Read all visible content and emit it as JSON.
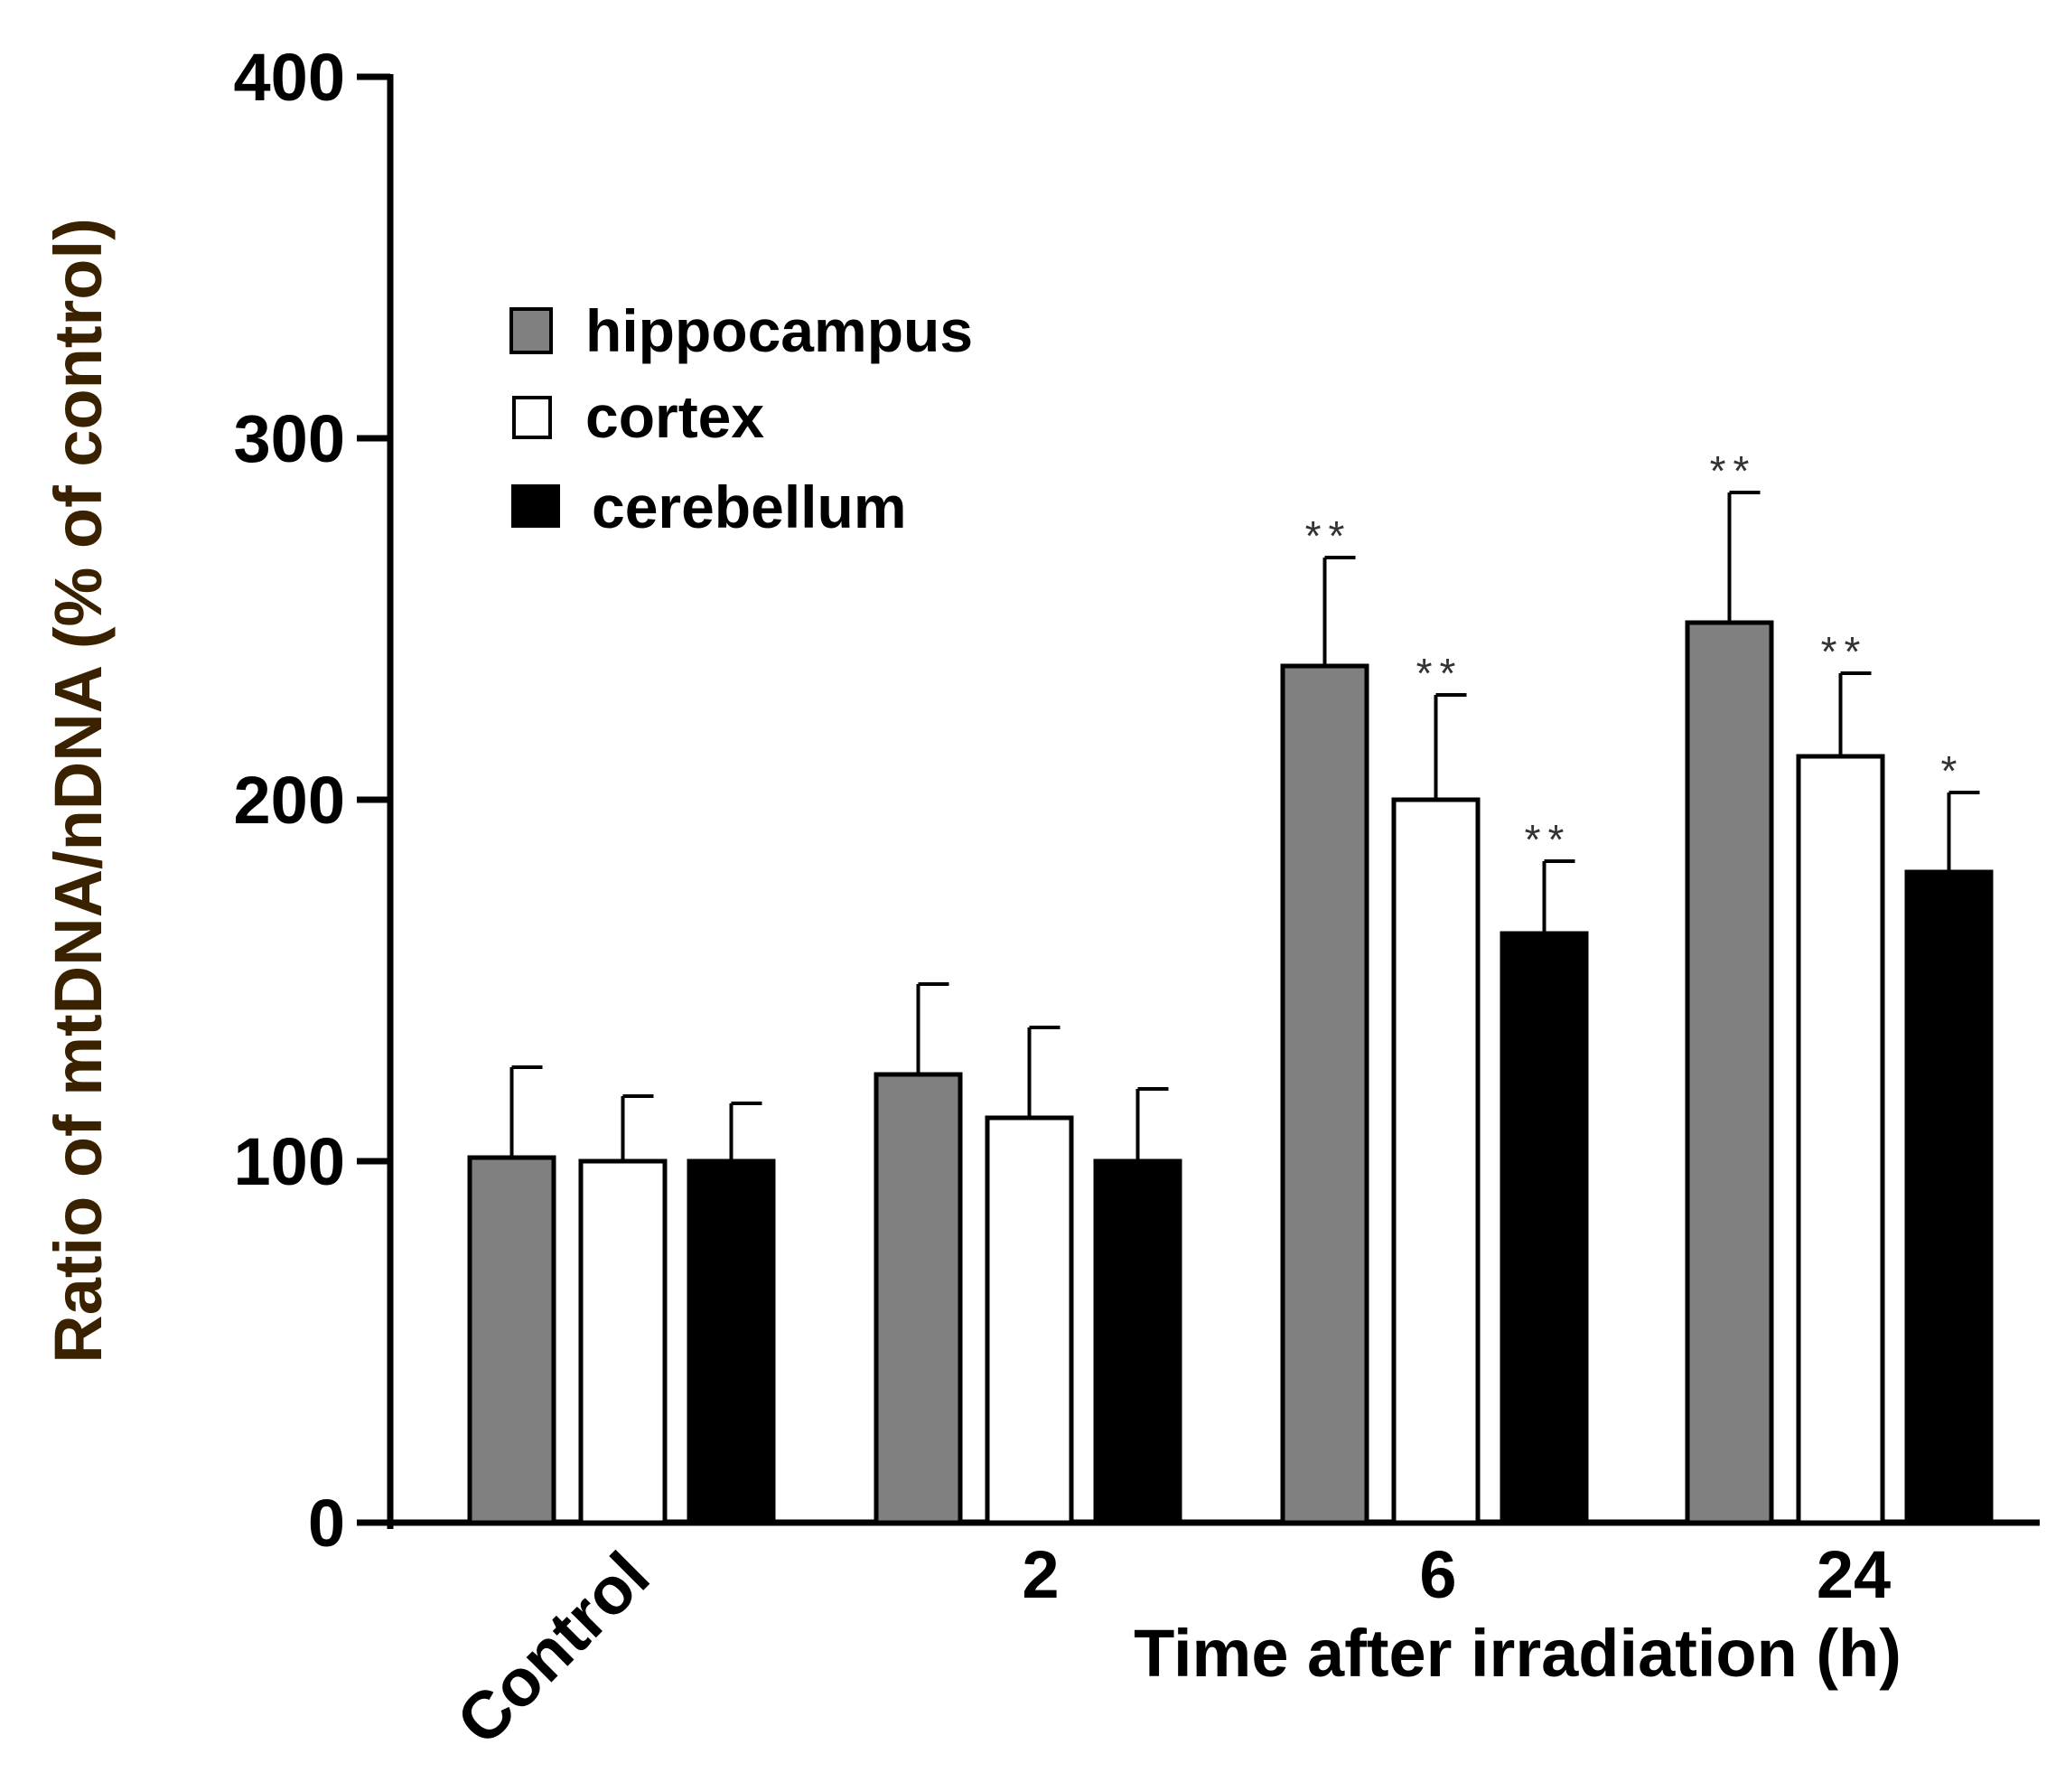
{
  "chart_data": {
    "type": "bar",
    "title": "",
    "xlabel": "Time after irradiation (h)",
    "ylabel": "Ratio of mtDNA/nDNA (% of control)",
    "ylim": [
      0,
      400
    ],
    "yticks": [
      "0",
      "100",
      "200",
      "300",
      "400"
    ],
    "categories": [
      "Control",
      "2",
      "6",
      "24"
    ],
    "legend_position": "top-left",
    "series": [
      {
        "name": "hippocampus",
        "color": "#808080",
        "values": [
          101,
          124,
          237,
          249
        ],
        "errors": [
          25,
          25,
          30,
          36
        ],
        "significance": [
          "",
          "",
          "**",
          "**"
        ]
      },
      {
        "name": "cortex",
        "color": "#ffffff",
        "values": [
          100,
          112,
          200,
          212
        ],
        "errors": [
          18,
          25,
          29,
          23
        ],
        "significance": [
          "",
          "",
          "**",
          "**"
        ]
      },
      {
        "name": "cerebellum",
        "color": "#000000",
        "values": [
          100,
          100,
          163,
          180
        ],
        "errors": [
          16,
          20,
          20,
          22
        ],
        "significance": [
          "",
          "",
          "**",
          "*"
        ]
      }
    ]
  }
}
